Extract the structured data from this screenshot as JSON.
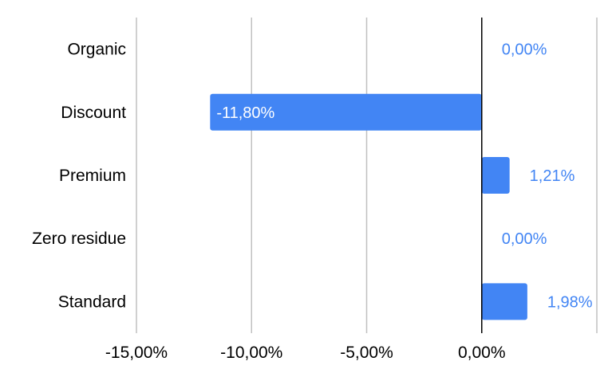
{
  "chart_data": {
    "type": "bar",
    "orientation": "horizontal",
    "categories": [
      "Organic",
      "Discount",
      "Premium",
      "Zero residue",
      "Standard"
    ],
    "values": [
      0.0,
      -11.8,
      1.21,
      0.0,
      1.98
    ],
    "value_labels": [
      "0,00%",
      "-11,80%",
      "1,21%",
      "0,00%",
      "1,98%"
    ],
    "xlim": [
      -15,
      5
    ],
    "x_ticks": [
      -15,
      -10,
      -5,
      0,
      5
    ],
    "x_tick_labels": [
      "-15,00%",
      "-10,00%",
      "-5,00%",
      "0,00%",
      ""
    ],
    "grid": "vertical",
    "legend": "none",
    "bar_color": "#4285f4",
    "label_color_outside": "#4285f4",
    "label_color_inside": "#ffffff",
    "gridline_color": "#c0c0c0",
    "zero_line_color": "#000000"
  }
}
